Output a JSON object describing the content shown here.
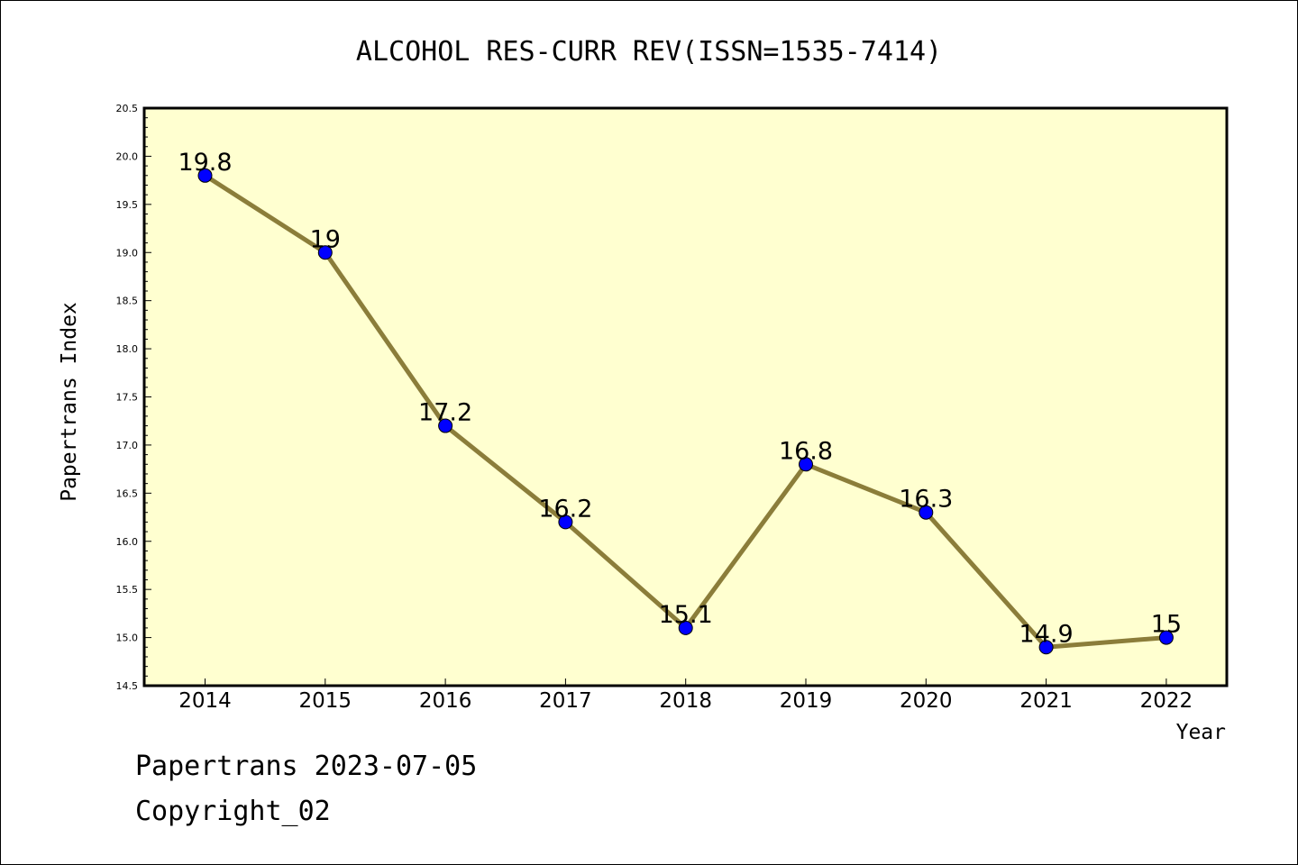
{
  "chart_data": {
    "type": "line",
    "title": "ALCOHOL RES-CURR REV(ISSN=1535-7414)",
    "xlabel": "Year",
    "ylabel": "Papertrans Index",
    "categories": [
      "2014",
      "2015",
      "2016",
      "2017",
      "2018",
      "2019",
      "2020",
      "2021",
      "2022"
    ],
    "values": [
      19.8,
      19,
      17.2,
      16.2,
      15.1,
      16.8,
      16.3,
      14.9,
      15
    ],
    "data_labels": [
      "19.8",
      "19",
      "17.2",
      "16.2",
      "15.1",
      "16.8",
      "16.3",
      "14.9",
      "15"
    ],
    "ylim": [
      14.5,
      20.5
    ],
    "yticks": [
      "14.5",
      "15.0",
      "15.5",
      "16.0",
      "16.5",
      "17.0",
      "17.5",
      "18.0",
      "18.5",
      "19.0",
      "19.5",
      "20.0",
      "20.5"
    ],
    "grid": false,
    "legend": "none",
    "colors": {
      "plot_background": "#ffffd0",
      "line": "#8b7d3a",
      "marker": "#0000ff"
    }
  },
  "footer": {
    "line1": "Papertrans 2023-07-05",
    "line2": "Copyright_02"
  }
}
